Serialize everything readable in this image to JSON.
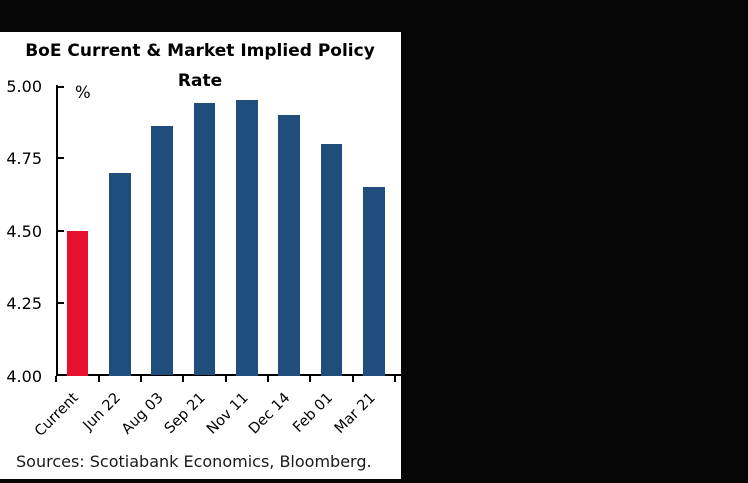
{
  "window": {
    "background_color": "#ffffff",
    "frame_bar_color": "#060606"
  },
  "chart_data": {
    "type": "bar",
    "title": "BoE Current & Market Implied Policy Rate",
    "title_lines": [
      "BoE Current & Market Implied Policy",
      "Rate"
    ],
    "unit_label": "%",
    "categories": [
      "Current",
      "Jun 22",
      "Aug 03",
      "Sep 21",
      "Nov 11",
      "Dec 14",
      "Feb 01",
      "Mar 21"
    ],
    "values": [
      4.5,
      4.7,
      4.86,
      4.94,
      4.95,
      4.9,
      4.8,
      4.65
    ],
    "highlight_index": 0,
    "colors": {
      "bar": "#1F4E7C",
      "highlight_bar": "#E8112D",
      "axis": "#000000",
      "text": "#000000"
    },
    "ylim": [
      4.0,
      5.0
    ],
    "ytick_labels": [
      "5.00",
      "4.75",
      "4.50",
      "4.25",
      "4.00"
    ],
    "ytick_values": [
      5.0,
      4.75,
      4.5,
      4.25,
      4.0
    ],
    "xlabel": "",
    "ylabel": "%",
    "grid": false,
    "legend": null,
    "source_note": "Sources: Scotiabank Economics, Bloomberg."
  }
}
